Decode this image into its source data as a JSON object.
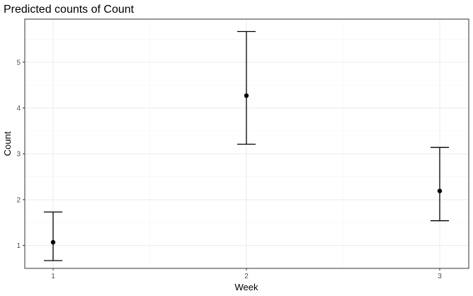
{
  "chart_data": {
    "type": "scatter",
    "title": "Predicted counts of Count",
    "xlabel": "Week",
    "ylabel": "Count",
    "categories": [
      "1",
      "2",
      "3"
    ],
    "series": [
      {
        "values": [
          1.07,
          4.27,
          2.19
        ],
        "lower": [
          0.67,
          3.21,
          1.54
        ],
        "upper": [
          1.73,
          5.67,
          3.14
        ]
      }
    ],
    "ylim": [
      0.5,
      5.94
    ],
    "yticks": [
      1,
      2,
      3,
      4,
      5
    ],
    "grid": true,
    "legend": "none"
  }
}
